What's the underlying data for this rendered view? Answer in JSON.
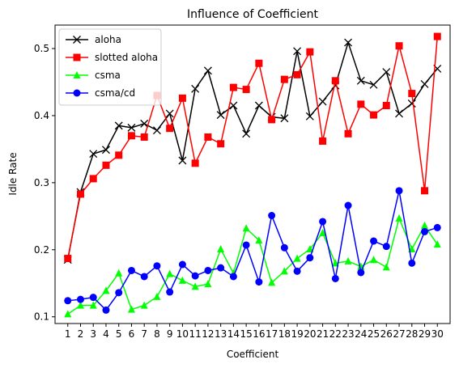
{
  "chart_data": {
    "type": "line",
    "title": "Influence of Coefficient",
    "xlabel": "Coefficient",
    "ylabel": "Idle Rate",
    "x": [
      1,
      2,
      3,
      4,
      5,
      6,
      7,
      8,
      9,
      10,
      11,
      12,
      13,
      14,
      15,
      16,
      17,
      18,
      19,
      20,
      21,
      22,
      23,
      24,
      25,
      26,
      27,
      28,
      29,
      30
    ],
    "xlim": [
      0,
      31
    ],
    "ylim": [
      0.09,
      0.535
    ],
    "yticks": [
      0.1,
      0.2,
      0.3,
      0.4,
      0.5
    ],
    "ytick_labels": [
      "0.1",
      "0.2",
      "0.3",
      "0.4",
      "0.5"
    ],
    "grid": false,
    "legend": "top-left",
    "series": [
      {
        "name": "aloha",
        "color": "#000000",
        "marker": "x",
        "values": [
          0.185,
          0.286,
          0.343,
          0.349,
          0.385,
          0.382,
          0.388,
          0.378,
          0.403,
          0.333,
          0.44,
          0.467,
          0.401,
          0.415,
          0.373,
          0.415,
          0.398,
          0.396,
          0.496,
          0.399,
          0.421,
          0.445,
          0.509,
          0.452,
          0.446,
          0.465,
          0.403,
          0.418,
          0.447,
          0.47
        ]
      },
      {
        "name": "slotted aloha",
        "color": "#ff0000",
        "marker": "square",
        "values": [
          0.187,
          0.283,
          0.306,
          0.326,
          0.341,
          0.37,
          0.368,
          0.43,
          0.381,
          0.426,
          0.329,
          0.368,
          0.358,
          0.442,
          0.439,
          0.478,
          0.394,
          0.454,
          0.461,
          0.495,
          0.362,
          0.452,
          0.373,
          0.417,
          0.401,
          0.415,
          0.504,
          0.433,
          0.288,
          0.518
        ]
      },
      {
        "name": "csma",
        "color": "#00ff00",
        "marker": "triangle",
        "values": [
          0.104,
          0.117,
          0.117,
          0.139,
          0.165,
          0.111,
          0.117,
          0.13,
          0.164,
          0.154,
          0.145,
          0.149,
          0.201,
          0.165,
          0.232,
          0.214,
          0.151,
          0.168,
          0.187,
          0.201,
          0.225,
          0.18,
          0.183,
          0.175,
          0.185,
          0.174,
          0.247,
          0.201,
          0.236,
          0.208
        ]
      },
      {
        "name": "csma/cd",
        "color": "#0000ff",
        "marker": "circle",
        "values": [
          0.124,
          0.126,
          0.129,
          0.11,
          0.136,
          0.169,
          0.16,
          0.176,
          0.137,
          0.178,
          0.161,
          0.169,
          0.173,
          0.16,
          0.207,
          0.152,
          0.251,
          0.203,
          0.168,
          0.188,
          0.242,
          0.157,
          0.266,
          0.166,
          0.213,
          0.205,
          0.288,
          0.18,
          0.227,
          0.233
        ]
      }
    ]
  }
}
